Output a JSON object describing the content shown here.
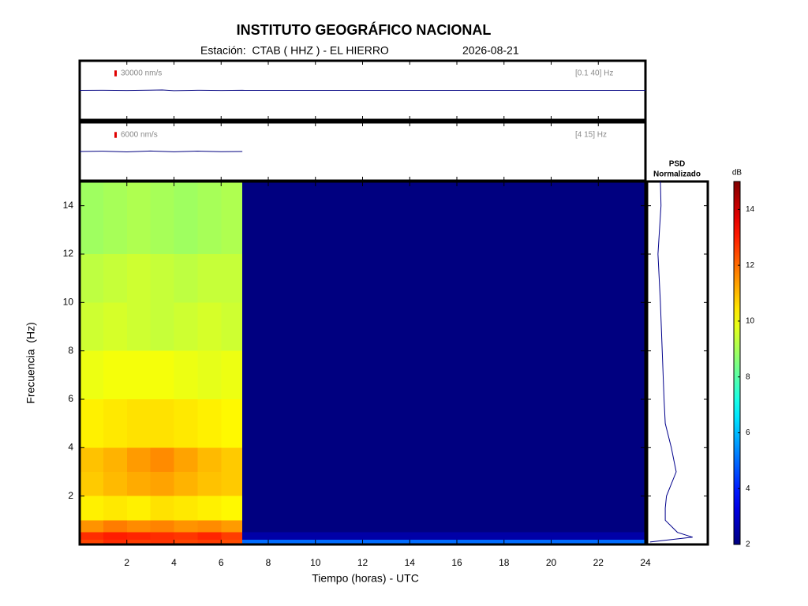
{
  "chart_data": [
    {
      "type": "heatmap",
      "title": "INSTITUTO GEOGRÁFICO NACIONAL",
      "subtitle": "Estación:  CTAB ( HHZ ) - EL HIERRO",
      "date": "2026-08-21",
      "xlabel": "Tiempo (horas) - UTC",
      "ylabel": "Frecuencia  (Hz)",
      "xbins": [
        0,
        1,
        2,
        3,
        4,
        5,
        6,
        6.9,
        24
      ],
      "ybins": [
        0,
        0.2,
        0.5,
        1,
        2,
        3,
        4,
        6,
        8,
        10,
        12,
        15
      ],
      "z": [
        [
          12.5,
          12.8,
          12.6,
          12.7,
          12.5,
          12.6,
          12.4,
          5
        ],
        [
          12.8,
          13,
          12.9,
          12.8,
          12.7,
          12.9,
          12.6,
          2.5
        ],
        [
          11.5,
          11.8,
          11.6,
          11.7,
          11.5,
          11.6,
          11.4,
          2
        ],
        [
          10.3,
          10.4,
          10.3,
          10.5,
          10.4,
          10.3,
          10.2,
          2
        ],
        [
          10.8,
          11,
          11.2,
          11.3,
          11.1,
          10.9,
          10.8,
          2
        ],
        [
          10.9,
          11.1,
          11.4,
          11.6,
          11.3,
          11,
          10.8,
          2
        ],
        [
          10.3,
          10.4,
          10.5,
          10.5,
          10.4,
          10.3,
          10.2,
          2
        ],
        [
          9.9,
          10,
          10,
          10,
          9.9,
          9.8,
          9.9,
          2
        ],
        [
          9.5,
          9.6,
          9.5,
          9.4,
          9.5,
          9.6,
          9.5,
          2
        ],
        [
          9.3,
          9.4,
          9.5,
          9.4,
          9.3,
          9.4,
          9.4,
          2
        ],
        [
          8.9,
          9,
          9.1,
          9,
          8.9,
          9,
          9.1,
          2
        ]
      ],
      "xlim": [
        0,
        24
      ],
      "xticks": [
        2,
        4,
        6,
        8,
        10,
        12,
        14,
        16,
        18,
        20,
        22,
        24
      ],
      "ylim": [
        0,
        15
      ],
      "yticks": [
        2,
        4,
        6,
        8,
        10,
        12,
        14
      ],
      "colormap": "jet",
      "zlim": [
        2,
        15
      ],
      "zticks": [
        2,
        4,
        6,
        8,
        10,
        12,
        14
      ],
      "colorbar_label": "dB"
    },
    {
      "type": "profile",
      "title_lines": [
        "PSD",
        "Normalizado"
      ],
      "color": "#00008b",
      "y": [
        0.1,
        0.3,
        0.5,
        1,
        1.5,
        2,
        3,
        4,
        5,
        6,
        8,
        10,
        12,
        14,
        15
      ],
      "values": [
        0.05,
        0.75,
        0.5,
        0.3,
        0.3,
        0.32,
        0.48,
        0.4,
        0.3,
        0.28,
        0.25,
        0.22,
        0.18,
        0.23,
        0.22
      ],
      "xlim": [
        0,
        1
      ],
      "ylim": [
        0,
        15
      ]
    },
    {
      "type": "line",
      "color": "#000080",
      "scale_bar": {
        "value": 30000,
        "label": "30000 nm/s"
      },
      "band": "[0.1 40] Hz",
      "x": [
        0,
        1,
        2,
        3,
        3.5,
        4,
        5,
        6,
        6.9,
        7,
        24
      ],
      "values": [
        0,
        500,
        -600,
        800,
        1800,
        -1500,
        700,
        -500,
        400,
        0,
        0
      ],
      "xlim": [
        0,
        24
      ],
      "ylim": [
        -150000,
        150000
      ]
    },
    {
      "type": "line",
      "color": "#000080",
      "scale_bar": {
        "value": 6000,
        "label": "6000 nm/s"
      },
      "band": "[4 15] Hz",
      "x": [
        0,
        1,
        2,
        3,
        4,
        5,
        6,
        6.9
      ],
      "values": [
        0,
        300,
        -400,
        500,
        -300,
        400,
        -200,
        0
      ],
      "xlim": [
        0,
        24
      ],
      "ylim": [
        -30000,
        30000
      ]
    }
  ]
}
